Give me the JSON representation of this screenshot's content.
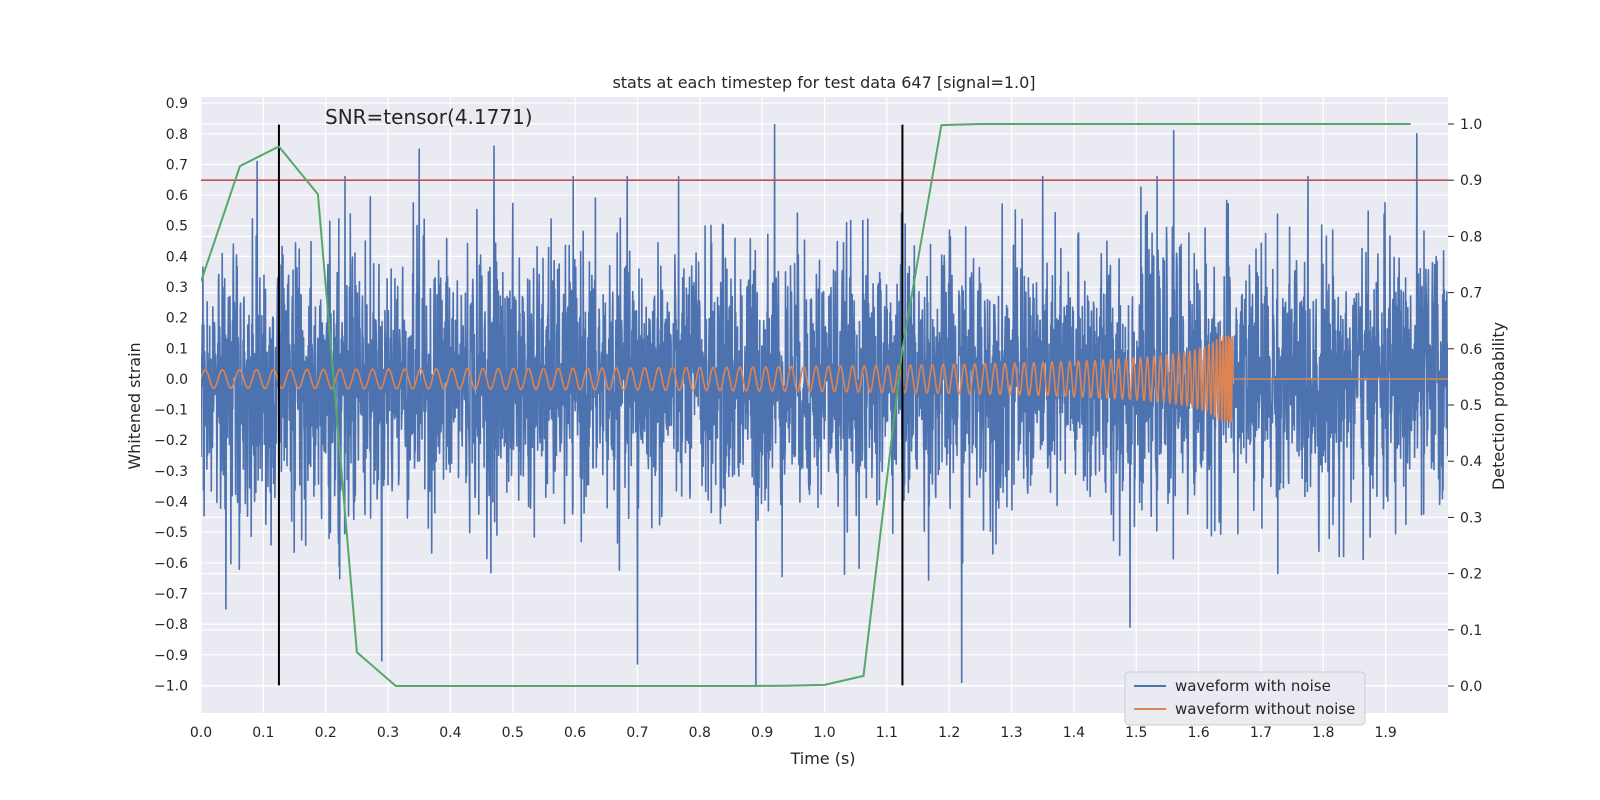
{
  "chart_data": {
    "type": "line",
    "title": "stats at each timestep for test data 647 [signal=1.0]",
    "xlabel": "Time (s)",
    "ylabel": "Whitened strain",
    "y2label": "Detection probability",
    "xlim": [
      0.0,
      2.0
    ],
    "ylim": [
      -1.09,
      0.92
    ],
    "y2lim": [
      -0.048,
      1.048
    ],
    "x_ticks": [
      "0.0",
      "0.1",
      "0.2",
      "0.3",
      "0.4",
      "0.5",
      "0.6",
      "0.7",
      "0.8",
      "0.9",
      "1.0",
      "1.1",
      "1.2",
      "1.3",
      "1.4",
      "1.5",
      "1.6",
      "1.7",
      "1.8",
      "1.9"
    ],
    "y_ticks": [
      "0.9",
      "0.8",
      "0.7",
      "0.6",
      "0.5",
      "0.4",
      "0.3",
      "0.2",
      "0.1",
      "0.0",
      "−0.1",
      "−0.2",
      "−0.3",
      "−0.4",
      "−0.5",
      "−0.6",
      "−0.7",
      "−0.8",
      "−0.9",
      "−1.0"
    ],
    "y2_ticks": [
      "1.0",
      "0.9",
      "0.8",
      "0.7",
      "0.6",
      "0.5",
      "0.4",
      "0.3",
      "0.2",
      "0.1",
      "0.0"
    ],
    "annotation": "SNR=tensor(4.1771)",
    "threshold": {
      "y2": 0.9,
      "color": "#c44e52"
    },
    "event_lines": {
      "x": [
        0.125,
        1.125
      ],
      "y_range": [
        -1.0,
        0.83
      ],
      "color": "#000000"
    },
    "series": [
      {
        "name": "waveform with noise",
        "axis": "left",
        "color": "#4c72b0",
        "description": "dense noisy whitened strain, amplitude mostly within ±0.5 with spikes to ±1.0",
        "x_range": [
          0.0,
          2.0
        ],
        "spikes": [
          {
            "x": 0.09,
            "y": 0.71
          },
          {
            "x": 0.04,
            "y": -0.75
          },
          {
            "x": 0.35,
            "y": 0.75
          },
          {
            "x": 0.47,
            "y": 0.76
          },
          {
            "x": 0.7,
            "y": -0.93
          },
          {
            "x": 0.89,
            "y": -1.0
          },
          {
            "x": 0.92,
            "y": 0.83
          },
          {
            "x": 1.22,
            "y": -0.99
          },
          {
            "x": 1.56,
            "y": 0.81
          },
          {
            "x": 1.95,
            "y": 0.8
          },
          {
            "x": 0.29,
            "y": -0.92
          },
          {
            "x": 1.49,
            "y": -0.81
          }
        ]
      },
      {
        "name": "waveform without noise",
        "axis": "left",
        "color": "#dd8452",
        "description": "chirp signal with growing frequency and amplitude, merging near t=1.65 s, then flat at 0",
        "x_range": [
          0.0,
          2.0
        ],
        "amplitude_start": 0.03,
        "amplitude_peak": 0.14,
        "merger_time": 1.655
      },
      {
        "name": "detection probability",
        "axis": "right",
        "color": "#55a868",
        "x": [
          0.0,
          0.0625,
          0.125,
          0.1875,
          0.25,
          0.3125,
          0.375,
          0.4375,
          0.5,
          0.5625,
          0.625,
          0.6875,
          0.75,
          0.8125,
          0.875,
          0.9375,
          1.0,
          1.0625,
          1.125,
          1.1875,
          1.25,
          1.3125,
          1.375,
          1.4375,
          1.5,
          1.5625,
          1.625,
          1.6875,
          1.75,
          1.8125,
          1.875,
          1.94
        ],
        "values": [
          0.72,
          0.925,
          0.96,
          0.875,
          0.06,
          0.0,
          0.0,
          0.0,
          0.0,
          0.0,
          0.0,
          0.0,
          0.0,
          0.0,
          0.0,
          0.0005,
          0.002,
          0.018,
          0.6,
          0.998,
          1.0,
          1.0,
          1.0,
          1.0,
          1.0,
          1.0,
          1.0,
          1.0,
          1.0,
          1.0,
          1.0,
          1.0
        ]
      }
    ],
    "legend": {
      "position": "lower-right",
      "entries": [
        "waveform with noise",
        "waveform without noise"
      ]
    }
  }
}
